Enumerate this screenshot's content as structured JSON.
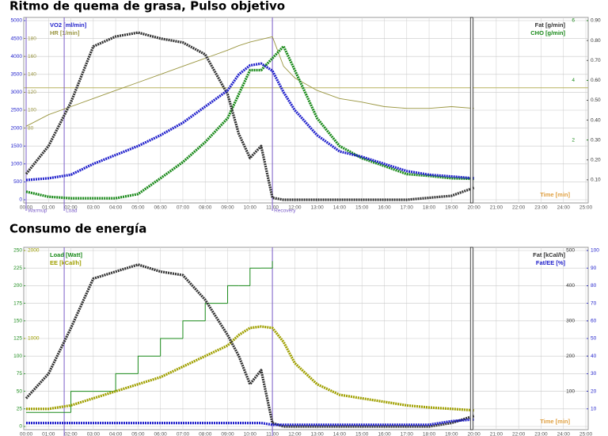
{
  "chart_data": [
    {
      "type": "line",
      "title": "Ritmo de quema de grasa, Pulso objetivo",
      "x": [
        0,
        1,
        2,
        3,
        4,
        5,
        6,
        7,
        8,
        9,
        9.5,
        10,
        10.5,
        11,
        11.5,
        12,
        13,
        14,
        15,
        16,
        17,
        18,
        19,
        20
      ],
      "xlim": [
        0,
        25
      ],
      "xticks": [
        {
          "value": 0,
          "label": "00:00"
        },
        {
          "value": 1,
          "label": "01:00"
        },
        {
          "value": 2,
          "label": "02:00"
        },
        {
          "value": 3,
          "label": "03:00"
        },
        {
          "value": 4,
          "label": "04:00"
        },
        {
          "value": 5,
          "label": "05:00"
        },
        {
          "value": 6,
          "label": "06:00"
        },
        {
          "value": 7,
          "label": "07:00"
        },
        {
          "value": 8,
          "label": "08:00"
        },
        {
          "value": 9,
          "label": "09:00"
        },
        {
          "value": 10,
          "label": "10:00"
        },
        {
          "value": 11,
          "label": "11:00"
        },
        {
          "value": 12,
          "label": "12:00"
        },
        {
          "value": 13,
          "label": "13:00"
        },
        {
          "value": 14,
          "label": "14:00"
        },
        {
          "value": 15,
          "label": "15:00"
        },
        {
          "value": 16,
          "label": "16:00"
        },
        {
          "value": 17,
          "label": "17:00"
        },
        {
          "value": 18,
          "label": "18:00"
        },
        {
          "value": 19,
          "label": "19:00"
        },
        {
          "value": 20,
          "label": "20:00"
        },
        {
          "value": 21,
          "label": "21:00"
        },
        {
          "value": 22,
          "label": "22:00"
        },
        {
          "value": 23,
          "label": "23:00"
        },
        {
          "value": 24,
          "label": "24:00"
        },
        {
          "value": 25,
          "label": "25:00"
        }
      ],
      "x_label": "Time [min]",
      "grid": true,
      "axes": [
        {
          "label": "VO2 [ml/min]",
          "color": "#2222cc",
          "side": "left-outer",
          "lim": [
            0,
            5000
          ],
          "ticks": [
            0,
            500,
            1000,
            1500,
            2000,
            2500,
            3000,
            3500,
            4000,
            4500,
            5000
          ]
        },
        {
          "label": "HR [1/min]",
          "color": "#9a9640",
          "side": "left-inner",
          "lim": [
            0,
            200
          ],
          "ticks": [
            80,
            100,
            120,
            140,
            160,
            180
          ]
        },
        {
          "label": "Fat [g/min]",
          "color": "#333333",
          "side": "right-outer",
          "lim": [
            0,
            0.9
          ],
          "ticks": [
            {
              "value": 0.1,
              "label": "0.10"
            },
            {
              "value": 0.2,
              "label": "0.20"
            },
            {
              "value": 0.3,
              "label": "0.30"
            },
            {
              "value": 0.4,
              "label": "0.40"
            },
            {
              "value": 0.5,
              "label": "0.50"
            },
            {
              "value": 0.6,
              "label": "0.60"
            },
            {
              "value": 0.7,
              "label": "0.70"
            },
            {
              "value": 0.8,
              "label": "0.80"
            },
            {
              "value": 0.9,
              "label": "0.90"
            }
          ]
        },
        {
          "label": "CHO [g/min]",
          "color": "#1a8a1a",
          "side": "right-inner",
          "lim": [
            0,
            6
          ],
          "ticks": [
            2,
            4,
            6
          ]
        }
      ],
      "series": [
        {
          "axis": 1,
          "color": "#9a9640",
          "style": "thin",
          "values": [
            82,
            95,
            104,
            113,
            122,
            131,
            140,
            149,
            158,
            167,
            172,
            176,
            179,
            182,
            149,
            136,
            122,
            113,
            109,
            104,
            102,
            102,
            104,
            102
          ]
        },
        {
          "axis": 3,
          "color": "#1a8a1a",
          "style": "thick",
          "values": [
            0.27,
            0.1,
            0.05,
            0.05,
            0.05,
            0.19,
            0.72,
            1.26,
            1.93,
            2.73,
            3.54,
            4.34,
            4.34,
            4.74,
            5.14,
            4.34,
            2.73,
            1.8,
            1.39,
            1.13,
            0.86,
            0.8,
            0.72,
            0.7
          ]
        },
        {
          "axis": 2,
          "color": "#333333",
          "style": "thick",
          "values": [
            0.13,
            0.27,
            0.49,
            0.77,
            0.82,
            0.84,
            0.81,
            0.79,
            0.73,
            0.53,
            0.33,
            0.21,
            0.27,
            0.01,
            0,
            0,
            0,
            0,
            0,
            0,
            0,
            0.01,
            0.02,
            0.06
          ]
        },
        {
          "axis": 0,
          "color": "#2222cc",
          "style": "thick",
          "values": [
            550,
            600,
            700,
            1000,
            1250,
            1500,
            1800,
            2150,
            2600,
            3050,
            3500,
            3750,
            3800,
            3600,
            3000,
            2500,
            1800,
            1350,
            1200,
            1000,
            800,
            700,
            650,
            600
          ]
        }
      ],
      "reference_lines": [
        {
          "axis": 1,
          "value": 125,
          "color": "#b8b460"
        }
      ],
      "phases": [
        {
          "x": 0,
          "label": "Warmup"
        },
        {
          "x": 1.7,
          "label": "Load"
        },
        {
          "x": 11,
          "label": "Recovery"
        }
      ],
      "cursor_x": 19.9
    },
    {
      "type": "line",
      "title": "Consumo de energía",
      "x": [
        0,
        1,
        2,
        3,
        4,
        5,
        6,
        7,
        8,
        9,
        9.5,
        10,
        10.5,
        11,
        11.5,
        12,
        13,
        14,
        15,
        16,
        17,
        18,
        19,
        20
      ],
      "xlim": [
        0,
        25
      ],
      "xticks": [
        {
          "value": 0,
          "label": "00:00"
        },
        {
          "value": 1,
          "label": "01:00"
        },
        {
          "value": 2,
          "label": "02:00"
        },
        {
          "value": 3,
          "label": "03:00"
        },
        {
          "value": 4,
          "label": "04:00"
        },
        {
          "value": 5,
          "label": "05:00"
        },
        {
          "value": 6,
          "label": "06:00"
        },
        {
          "value": 7,
          "label": "07:00"
        },
        {
          "value": 8,
          "label": "08:00"
        },
        {
          "value": 9,
          "label": "09:00"
        },
        {
          "value": 10,
          "label": "10:00"
        },
        {
          "value": 11,
          "label": "11:00"
        },
        {
          "value": 12,
          "label": "12:00"
        },
        {
          "value": 13,
          "label": "13:00"
        },
        {
          "value": 14,
          "label": "14:00"
        },
        {
          "value": 15,
          "label": "15:00"
        },
        {
          "value": 16,
          "label": "16:00"
        },
        {
          "value": 17,
          "label": "17:00"
        },
        {
          "value": 18,
          "label": "18:00"
        },
        {
          "value": 19,
          "label": "19:00"
        },
        {
          "value": 20,
          "label": "20:00"
        },
        {
          "value": 21,
          "label": "21:00"
        },
        {
          "value": 22,
          "label": "22:00"
        },
        {
          "value": 23,
          "label": "23:00"
        },
        {
          "value": 24,
          "label": "24:00"
        },
        {
          "value": 25,
          "label": "25:00"
        }
      ],
      "x_label": "Time [min]",
      "grid": true,
      "axes": [
        {
          "label": "Load [Watt]",
          "color": "#1a8a1a",
          "side": "left-outer",
          "lim": [
            0,
            250
          ],
          "ticks": [
            0,
            25,
            50,
            75,
            100,
            125,
            150,
            175,
            200,
            225,
            250
          ]
        },
        {
          "label": "EE [kCal/h]",
          "color": "#a0a000",
          "side": "left-inner",
          "lim": [
            0,
            2000
          ],
          "ticks": [
            1000,
            2000
          ]
        },
        {
          "label": "Fat [kCal/h]",
          "color": "#333333",
          "side": "right-inner",
          "lim": [
            0,
            500
          ],
          "ticks": [
            100,
            200,
            300,
            400,
            500
          ]
        },
        {
          "label": "Fat/EE [%]",
          "color": "#2222cc",
          "side": "right-outer",
          "lim": [
            0,
            100
          ],
          "ticks": [
            10,
            20,
            30,
            40,
            50,
            60,
            70,
            80,
            90,
            100
          ]
        }
      ],
      "series": [
        {
          "axis": 0,
          "color": "#1a8a1a",
          "style": "step",
          "values": [
            20,
            20,
            50,
            50,
            75,
            100,
            125,
            150,
            175,
            200,
            200,
            225,
            225,
            235,
            null,
            null,
            null,
            null,
            null,
            null,
            null,
            null,
            null,
            null
          ]
        },
        {
          "axis": 1,
          "color": "#a0a000",
          "style": "thick",
          "values": [
            200,
            200,
            240,
            320,
            400,
            480,
            560,
            680,
            800,
            920,
            1040,
            1120,
            1136,
            1120,
            960,
            720,
            480,
            360,
            320,
            280,
            240,
            216,
            200,
            184
          ]
        },
        {
          "axis": 2,
          "color": "#333333",
          "style": "thick",
          "values": [
            80,
            150,
            280,
            420,
            440,
            460,
            440,
            430,
            360,
            260,
            200,
            120,
            160,
            10,
            0,
            0,
            0,
            0,
            0,
            0,
            0,
            0,
            10,
            30
          ]
        },
        {
          "axis": 3,
          "color": "#2222cc",
          "style": "thick",
          "values": [
            2,
            2,
            2,
            2,
            2,
            2,
            2,
            2,
            2,
            2,
            2,
            2,
            2,
            1,
            1,
            1,
            1,
            1,
            1,
            1,
            1,
            1,
            3,
            4
          ]
        }
      ],
      "phases": [
        {
          "x": 1.7
        },
        {
          "x": 11
        }
      ],
      "cursor_x": 19.9
    }
  ]
}
